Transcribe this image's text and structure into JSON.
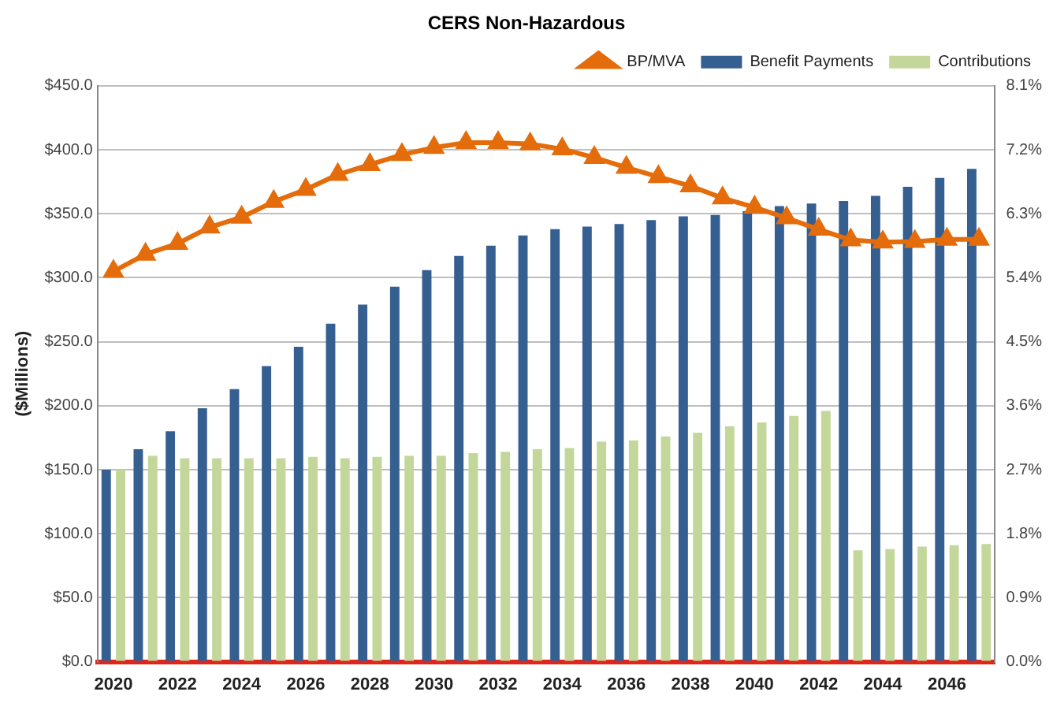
{
  "chart_data": {
    "type": "bar",
    "title": "CERS Non-Hazardous",
    "ylabel": "($Millions)",
    "categories": [
      "2020",
      null,
      "2022",
      null,
      "2024",
      null,
      "2026",
      null,
      "2028",
      null,
      "2030",
      null,
      "2032",
      null,
      "2034",
      null,
      "2036",
      null,
      "2038",
      null,
      "2040",
      null,
      "2042",
      null,
      "2044",
      null,
      "2046",
      null
    ],
    "series": [
      {
        "name": "Benefit Payments",
        "color": "#355f91",
        "values": [
          150,
          166,
          180,
          198,
          213,
          231,
          246,
          264,
          279,
          293,
          306,
          317,
          325,
          333,
          338,
          340,
          342,
          345,
          348,
          349,
          352,
          356,
          358,
          360,
          364,
          371,
          378,
          385
        ]
      },
      {
        "name": "Contributions",
        "color": "#c4d79b",
        "values": [
          150,
          161,
          159,
          159,
          159,
          159,
          160,
          159,
          160,
          161,
          161,
          163,
          164,
          166,
          167,
          172,
          173,
          176,
          179,
          184,
          187,
          192,
          196,
          87,
          88,
          90,
          91,
          92
        ]
      },
      {
        "name": "BP/MVA",
        "type": "line",
        "axis": "y2",
        "color": "#e46c0a",
        "marker": "triangle",
        "values": [
          5.49,
          5.73,
          5.88,
          6.11,
          6.25,
          6.47,
          6.64,
          6.85,
          6.99,
          7.13,
          7.23,
          7.3,
          7.3,
          7.28,
          7.21,
          7.09,
          6.95,
          6.82,
          6.69,
          6.52,
          6.39,
          6.24,
          6.08,
          5.93,
          5.9,
          5.91,
          5.94,
          5.94
        ]
      }
    ],
    "ylim": [
      0,
      450
    ],
    "yticks": [
      {
        "value": 0,
        "label": "$0.0"
      },
      {
        "value": 50,
        "label": "$50.0"
      },
      {
        "value": 100,
        "label": "$100.0"
      },
      {
        "value": 150,
        "label": "$150.0"
      },
      {
        "value": 200,
        "label": "$200.0"
      },
      {
        "value": 250,
        "label": "$250.0"
      },
      {
        "value": 300,
        "label": "$300.0"
      },
      {
        "value": 350,
        "label": "$350.0"
      },
      {
        "value": 400,
        "label": "$400.0"
      },
      {
        "value": 450,
        "label": "$450.0"
      }
    ],
    "y2lim": [
      0,
      8.1
    ],
    "y2ticks": [
      {
        "value": 0,
        "label": "0.0%"
      },
      {
        "value": 0.9,
        "label": "0.9%"
      },
      {
        "value": 1.8,
        "label": "1.8%"
      },
      {
        "value": 2.7,
        "label": "2.7%"
      },
      {
        "value": 3.6,
        "label": "3.6%"
      },
      {
        "value": 4.5,
        "label": "4.5%"
      },
      {
        "value": 5.4,
        "label": "5.4%"
      },
      {
        "value": 6.3,
        "label": "6.3%"
      },
      {
        "value": 7.2,
        "label": "7.2%"
      },
      {
        "value": 8.1,
        "label": "8.1%"
      }
    ],
    "grid": "y",
    "legend": "top right"
  }
}
